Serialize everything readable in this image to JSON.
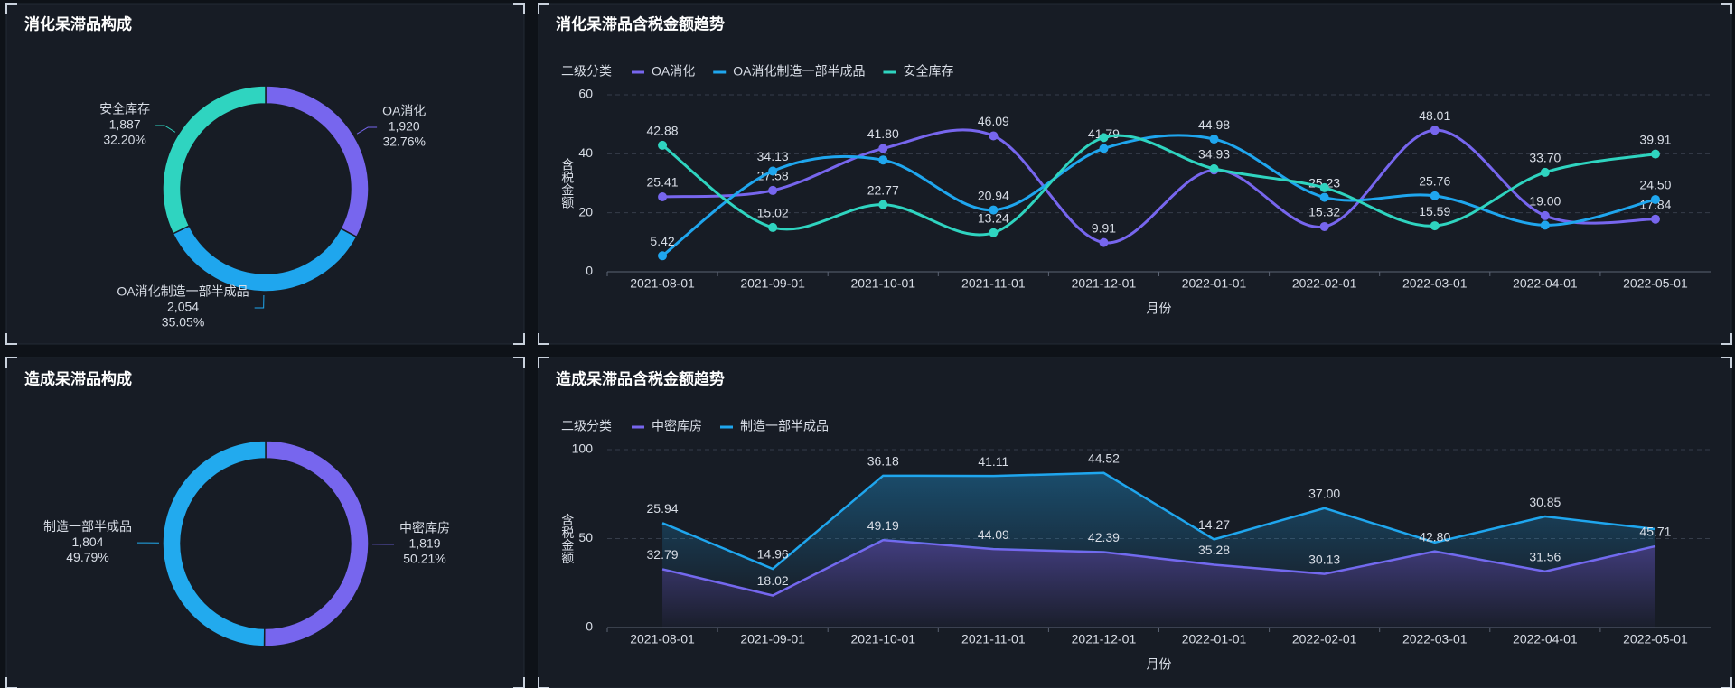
{
  "chart_data": [
    {
      "type": "pie",
      "title": "消化呆滞品构成",
      "categories": [
        "OA消化",
        "OA消化制造一部半成品",
        "安全库存"
      ],
      "values": [
        1920,
        2054,
        1887
      ],
      "value_labels": [
        "1,920",
        "2,054",
        "1,887"
      ],
      "percent_labels": [
        "32.76%",
        "35.05%",
        "32.20%"
      ],
      "colors": [
        "#7766ee",
        "#1fa6ee",
        "#2fd4c0"
      ]
    },
    {
      "type": "line",
      "title": "消化呆滞品含税金额趋势",
      "legend_title": "二级分类",
      "x": [
        "2021-08-01",
        "2021-09-01",
        "2021-10-01",
        "2021-11-01",
        "2021-12-01",
        "2022-01-01",
        "2022-02-01",
        "2022-03-01",
        "2022-04-01",
        "2022-05-01"
      ],
      "series": [
        {
          "name": "OA消化",
          "color": "#7766ee",
          "values": [
            25.41,
            27.58,
            41.8,
            46.09,
            9.91,
            34.5,
            15.32,
            48.01,
            19.0,
            17.84
          ],
          "value_labels": [
            "25.41",
            "27.58",
            "41.80",
            "46.09",
            "9.91",
            null,
            "15.32",
            "48.01",
            "19.00",
            "17.84"
          ]
        },
        {
          "name": "OA消化制造一部半成品",
          "color": "#1fa6ee",
          "values": [
            5.42,
            34.13,
            37.9,
            20.94,
            41.79,
            44.98,
            25.23,
            25.76,
            15.8,
            24.5
          ],
          "value_labels": [
            "5.42",
            "34.13",
            null,
            "20.94",
            "41.79",
            "44.98",
            "25.23",
            "25.76",
            null,
            "24.50"
          ]
        },
        {
          "name": "安全库存",
          "color": "#2fd4c0",
          "values": [
            42.88,
            15.02,
            22.77,
            13.24,
            45.5,
            34.93,
            28.5,
            15.59,
            33.7,
            39.91
          ],
          "value_labels": [
            "42.88",
            "15.02",
            "22.77",
            "13.24",
            null,
            "34.93",
            null,
            "15.59",
            "33.70",
            "39.91"
          ]
        }
      ],
      "ylim": [
        0,
        60
      ],
      "yticks": [
        0,
        20,
        40,
        60
      ],
      "xlabel": "月份",
      "ylabel": "含税金额",
      "smooth": true,
      "grid": true
    },
    {
      "type": "pie",
      "title": "造成呆滞品构成",
      "categories": [
        "中密库房",
        "制造一部半成品"
      ],
      "values": [
        1819,
        1804
      ],
      "value_labels": [
        "1,819",
        "1,804"
      ],
      "percent_labels": [
        "50.21%",
        "49.79%"
      ],
      "colors": [
        "#7766ee",
        "#22aaee"
      ]
    },
    {
      "type": "area",
      "title": "造成呆滞品含税金额趋势",
      "legend_title": "二级分类",
      "stacked": true,
      "x": [
        "2021-08-01",
        "2021-09-01",
        "2021-10-01",
        "2021-11-01",
        "2021-12-01",
        "2022-01-01",
        "2022-02-01",
        "2022-03-01",
        "2022-04-01",
        "2022-05-01"
      ],
      "series": [
        {
          "name": "中密库房",
          "color": "#7766ee",
          "values": [
            32.79,
            18.02,
            49.19,
            44.09,
            42.39,
            35.28,
            30.13,
            42.8,
            31.56,
            45.71
          ],
          "value_labels": [
            "32.79",
            "18.02",
            "49.19",
            "44.09",
            "42.39",
            "35.28",
            "30.13",
            "42.80",
            "31.56",
            "45.71"
          ]
        },
        {
          "name": "制造一部半成品",
          "color": "#1fa6ee",
          "values": [
            25.94,
            14.96,
            36.18,
            41.11,
            44.52,
            14.27,
            37.0,
            5.0,
            30.85,
            9.6
          ],
          "value_labels": [
            "25.94",
            "14.96",
            "36.18",
            "41.11",
            "44.52",
            "14.27",
            "37.00",
            null,
            "30.85",
            null
          ]
        }
      ],
      "ylim": [
        0,
        100
      ],
      "yticks": [
        0,
        50,
        100
      ],
      "xlabel": "月份",
      "ylabel": "含税金额",
      "grid": true
    }
  ]
}
